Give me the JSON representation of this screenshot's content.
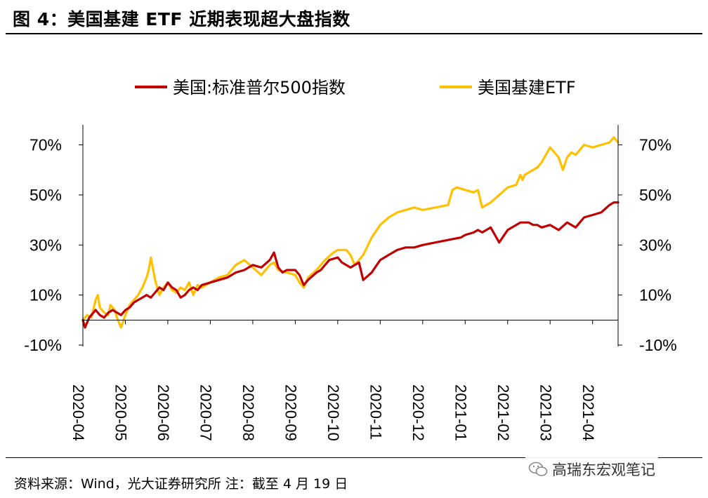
{
  "title": "图 4：美国基建 ETF 近期表现超大盘指数",
  "source": "资料来源：Wind，光大证券研究所  注：截至 4 月 19 日",
  "watermark": "高瑞东宏观笔记",
  "colors": {
    "sp500": "#c00000",
    "etf": "#ffc000",
    "axis": "#000000"
  },
  "chart_data": {
    "type": "line",
    "title": "",
    "xlabel": "",
    "ylabel": "",
    "ylim": [
      -0.1,
      0.78
    ],
    "yticks": [
      -0.1,
      0.1,
      0.3,
      0.5,
      0.7
    ],
    "ytick_labels": [
      "-10%",
      "10%",
      "30%",
      "50%",
      "70%"
    ],
    "x_range": [
      0,
      12.6
    ],
    "x_ticks": [
      0,
      1,
      2,
      3,
      4,
      5,
      6,
      7,
      8,
      9,
      10,
      11,
      12
    ],
    "x_tick_labels": [
      "2020-04",
      "2020-05",
      "2020-06",
      "2020-07",
      "2020-08",
      "2020-09",
      "2020-10",
      "2020-11",
      "2020-12",
      "2021-01",
      "2021-02",
      "2021-03",
      "2021-04"
    ],
    "legend_position": "top",
    "series": [
      {
        "name": "美国:标准普尔500指数",
        "color": "#c00000",
        "x": [
          0,
          0.05,
          0.15,
          0.25,
          0.3,
          0.4,
          0.5,
          0.6,
          0.7,
          0.8,
          0.9,
          1.0,
          1.1,
          1.2,
          1.3,
          1.4,
          1.5,
          1.6,
          1.7,
          1.8,
          1.9,
          2.0,
          2.1,
          2.2,
          2.3,
          2.4,
          2.5,
          2.6,
          2.7,
          2.8,
          3.0,
          3.2,
          3.4,
          3.6,
          3.8,
          4.0,
          4.2,
          4.4,
          4.5,
          4.6,
          4.7,
          4.8,
          5.0,
          5.1,
          5.2,
          5.3,
          5.5,
          5.6,
          5.8,
          6.0,
          6.1,
          6.3,
          6.5,
          6.6,
          6.8,
          7.0,
          7.2,
          7.4,
          7.6,
          7.8,
          8.0,
          8.3,
          8.6,
          8.9,
          9.0,
          9.2,
          9.3,
          9.4,
          9.6,
          9.8,
          10.0,
          10.2,
          10.3,
          10.4,
          10.5,
          10.6,
          10.7,
          10.8,
          11.0,
          11.2,
          11.4,
          11.5,
          11.6,
          11.8,
          12.0,
          12.2,
          12.4,
          12.5,
          12.6
        ],
        "values": [
          0.0,
          -0.03,
          0.01,
          0.03,
          0.04,
          0.02,
          0.01,
          0.03,
          0.04,
          0.03,
          0.02,
          0.04,
          0.05,
          0.07,
          0.08,
          0.09,
          0.1,
          0.09,
          0.11,
          0.13,
          0.12,
          0.15,
          0.13,
          0.12,
          0.09,
          0.1,
          0.12,
          0.13,
          0.12,
          0.14,
          0.15,
          0.16,
          0.17,
          0.19,
          0.2,
          0.22,
          0.21,
          0.24,
          0.27,
          0.21,
          0.19,
          0.2,
          0.2,
          0.18,
          0.14,
          0.16,
          0.19,
          0.2,
          0.24,
          0.25,
          0.23,
          0.21,
          0.23,
          0.16,
          0.19,
          0.24,
          0.26,
          0.28,
          0.29,
          0.29,
          0.3,
          0.31,
          0.32,
          0.33,
          0.34,
          0.35,
          0.36,
          0.35,
          0.37,
          0.31,
          0.36,
          0.38,
          0.39,
          0.39,
          0.39,
          0.38,
          0.38,
          0.37,
          0.38,
          0.36,
          0.39,
          0.38,
          0.37,
          0.41,
          0.42,
          0.43,
          0.46,
          0.47,
          0.47
        ]
      },
      {
        "name": "美国基建ETF",
        "color": "#ffc000",
        "x": [
          0,
          0.1,
          0.2,
          0.3,
          0.35,
          0.4,
          0.5,
          0.6,
          0.65,
          0.75,
          0.8,
          0.9,
          1.0,
          1.1,
          1.2,
          1.3,
          1.4,
          1.5,
          1.55,
          1.6,
          1.7,
          1.8,
          1.9,
          2.0,
          2.1,
          2.2,
          2.3,
          2.4,
          2.5,
          2.6,
          2.7,
          2.8,
          3.0,
          3.2,
          3.4,
          3.6,
          3.8,
          4.0,
          4.2,
          4.4,
          4.5,
          4.6,
          4.8,
          5.0,
          5.1,
          5.2,
          5.3,
          5.5,
          5.7,
          5.9,
          6.0,
          6.2,
          6.3,
          6.4,
          6.6,
          6.8,
          7.0,
          7.2,
          7.4,
          7.6,
          7.8,
          8.0,
          8.3,
          8.6,
          8.7,
          8.8,
          9.0,
          9.2,
          9.3,
          9.4,
          9.6,
          9.8,
          10.0,
          10.2,
          10.3,
          10.35,
          10.4,
          10.5,
          10.6,
          10.7,
          10.8,
          11.0,
          11.2,
          11.3,
          11.4,
          11.5,
          11.6,
          11.8,
          12.0,
          12.2,
          12.4,
          12.5,
          12.6
        ],
        "values": [
          0.0,
          0.02,
          0.01,
          0.08,
          0.1,
          0.05,
          0.03,
          0.02,
          0.06,
          0.04,
          0.01,
          -0.03,
          0.02,
          0.06,
          0.08,
          0.1,
          0.13,
          0.17,
          0.2,
          0.25,
          0.16,
          0.1,
          0.13,
          0.15,
          0.12,
          0.11,
          0.13,
          0.12,
          0.15,
          0.1,
          0.14,
          0.13,
          0.15,
          0.17,
          0.18,
          0.22,
          0.24,
          0.21,
          0.18,
          0.22,
          0.23,
          0.2,
          0.19,
          0.18,
          0.15,
          0.13,
          0.17,
          0.2,
          0.24,
          0.27,
          0.28,
          0.28,
          0.26,
          0.22,
          0.26,
          0.33,
          0.38,
          0.41,
          0.43,
          0.44,
          0.45,
          0.44,
          0.45,
          0.46,
          0.52,
          0.53,
          0.52,
          0.51,
          0.52,
          0.45,
          0.47,
          0.5,
          0.53,
          0.54,
          0.58,
          0.56,
          0.58,
          0.59,
          0.6,
          0.61,
          0.63,
          0.69,
          0.65,
          0.6,
          0.65,
          0.67,
          0.66,
          0.7,
          0.69,
          0.7,
          0.71,
          0.73,
          0.71
        ]
      }
    ]
  }
}
